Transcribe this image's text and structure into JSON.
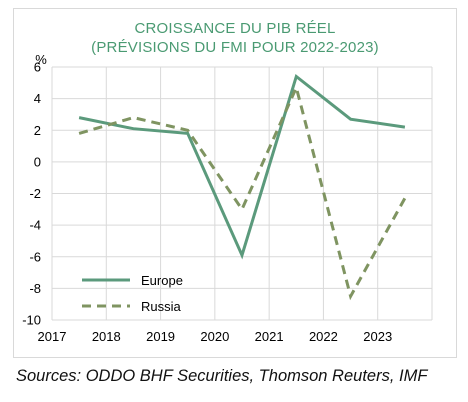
{
  "colors": {
    "title": "#4a9a72",
    "europe": "#5b9a7c",
    "russia": "#7f9461",
    "grid": "#d9d9d9",
    "axis_text": "#000000"
  },
  "source_text": "Sources: ODDO BHF Securities, Thomson Reuters, IMF",
  "chart_data": {
    "type": "line",
    "title": "CROISSANCE DU PIB RÉEL",
    "subtitle": "(PRÉVISIONS DU FMI POUR 2022-2023)",
    "y_unit_label": "%",
    "xlabel": "",
    "ylabel": "",
    "x_ticks": [
      "2017",
      "2018",
      "2019",
      "2020",
      "2021",
      "2022",
      "2023"
    ],
    "xlim": [
      2017,
      2024
    ],
    "ylim": [
      -10,
      6
    ],
    "y_ticks": [
      6,
      4,
      2,
      0,
      -2,
      -4,
      -6,
      -8,
      -10
    ],
    "grid": true,
    "legend_position": "bottom-left",
    "series": [
      {
        "name": "Europe",
        "style": "solid",
        "x": [
          2017.5,
          2018.5,
          2019.5,
          2020.5,
          2021.5,
          2022.5,
          2023.5
        ],
        "values": [
          2.8,
          2.1,
          1.8,
          -5.9,
          5.4,
          2.7,
          2.2
        ]
      },
      {
        "name": "Russia",
        "style": "dashed",
        "x": [
          2017.5,
          2018.5,
          2019.5,
          2020.5,
          2021.5,
          2022.5,
          2023.5
        ],
        "values": [
          1.8,
          2.8,
          2.0,
          -3.0,
          4.7,
          -8.5,
          -2.3
        ]
      }
    ]
  }
}
